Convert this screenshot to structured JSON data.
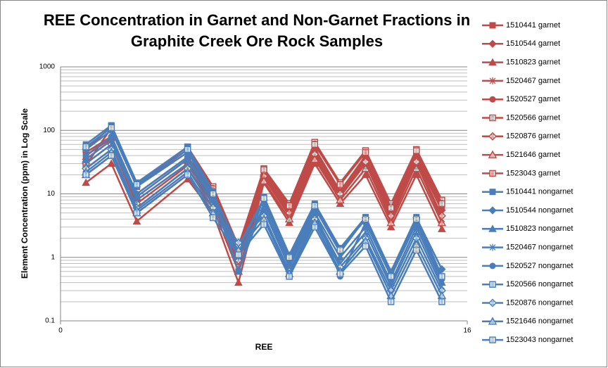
{
  "chart_data": {
    "type": "line",
    "title": "REE Concentration in Garnet and Non-Garnet Fractions in Graphite Creek Ore Rock Samples",
    "x_label": "REE",
    "y_label": "Element Concentration (ppm) in Log Scale",
    "x": [
      1,
      2,
      3,
      5,
      6,
      7,
      8,
      9,
      10,
      11,
      12,
      13,
      14,
      15
    ],
    "xlim": [
      0,
      16
    ],
    "xticks": [
      0,
      16
    ],
    "ylim": [
      0.1,
      1000
    ],
    "yticks": [
      1000,
      100,
      10,
      1,
      0.1
    ],
    "yminorticks": [
      0.2,
      0.3,
      0.4,
      0.5,
      0.6,
      0.7,
      0.8,
      0.9,
      2,
      3,
      4,
      5,
      6,
      7,
      8,
      9,
      20,
      30,
      40,
      50,
      60,
      70,
      80,
      90,
      200,
      300,
      400,
      500,
      600,
      700,
      800,
      900
    ],
    "log_y": true,
    "grid": true,
    "legend": "right",
    "series": [
      {
        "name": "1510441 garnet",
        "color": "#be4b48",
        "marker": "square",
        "values": [
          40,
          75,
          9,
          35,
          10,
          1.2,
          22,
          6,
          50,
          11,
          38,
          5,
          38,
          6
        ]
      },
      {
        "name": "1510544 garnet",
        "color": "#be4b48",
        "marker": "diamond",
        "values": [
          35,
          70,
          8,
          30,
          9,
          1.0,
          20,
          5.5,
          45,
          10,
          35,
          4.8,
          35,
          5.5
        ]
      },
      {
        "name": "1510823 garnet",
        "color": "#be4b48",
        "marker": "triangle",
        "values": [
          15,
          30,
          3.7,
          17,
          5,
          0.4,
          15,
          3.5,
          30,
          7,
          20,
          3,
          20,
          2.8
        ]
      },
      {
        "name": "1520467 garnet",
        "color": "#be4b48",
        "marker": "star",
        "values": [
          25,
          50,
          6,
          25,
          7,
          0.8,
          18,
          4.5,
          38,
          9,
          30,
          4,
          30,
          4
        ]
      },
      {
        "name": "1520527 garnet",
        "color": "#be4b48",
        "marker": "circle",
        "values": [
          45,
          80,
          10,
          38,
          11,
          1.3,
          21,
          6,
          52,
          11,
          40,
          5.5,
          42,
          6.5
        ]
      },
      {
        "name": "1520566 garnet",
        "color": "#be4b48",
        "marker": "square-hatch",
        "values": [
          50,
          115,
          14,
          55,
          13,
          1.5,
          25,
          7,
          65,
          15,
          48,
          7,
          50,
          8
        ]
      },
      {
        "name": "1520876 garnet",
        "color": "#be4b48",
        "marker": "diamond-hatch",
        "values": [
          30,
          60,
          7,
          28,
          8,
          0.9,
          19,
          5,
          42,
          10,
          32,
          4.5,
          32,
          4.5
        ]
      },
      {
        "name": "1521646 garnet",
        "color": "#be4b48",
        "marker": "triangle-hatch",
        "values": [
          20,
          40,
          5,
          20,
          6,
          0.6,
          16,
          4,
          35,
          8,
          25,
          3.5,
          25,
          3.5
        ]
      },
      {
        "name": "1523043 garnet",
        "color": "#be4b48",
        "marker": "square-hatch",
        "values": [
          28,
          110,
          13,
          50,
          12,
          1.4,
          24,
          6.5,
          60,
          14,
          45,
          6,
          48,
          7
        ]
      },
      {
        "name": "1510441 nongarnet",
        "color": "#4a7ebb",
        "marker": "square",
        "values": [
          60,
          120,
          15,
          55,
          11,
          0.6,
          9,
          1.1,
          7,
          1.4,
          4.3,
          0.6,
          4.3,
          0.5
        ]
      },
      {
        "name": "1510544 nongarnet",
        "color": "#4a7ebb",
        "marker": "diamond",
        "values": [
          50,
          100,
          13,
          45,
          10,
          1.4,
          8,
          1.0,
          6,
          1.2,
          4.2,
          0.55,
          4.2,
          0.65
        ]
      },
      {
        "name": "1510823 nongarnet",
        "color": "#4a7ebb",
        "marker": "triangle",
        "values": [
          35,
          70,
          9,
          35,
          8,
          1.2,
          6,
          0.8,
          5,
          1.0,
          3,
          0.4,
          3,
          0.4
        ]
      },
      {
        "name": "1520467 nongarnet",
        "color": "#4a7ebb",
        "marker": "star",
        "values": [
          30,
          60,
          8,
          30,
          7,
          1.0,
          5.5,
          0.7,
          4.5,
          0.8,
          2.5,
          0.35,
          2.5,
          0.35
        ]
      },
      {
        "name": "1520527 nongarnet",
        "color": "#4a7ebb",
        "marker": "circle",
        "values": [
          40,
          80,
          10,
          38,
          9,
          0.6,
          7,
          0.9,
          5.5,
          0.5,
          3.5,
          0.5,
          3.5,
          0.45
        ]
      },
      {
        "name": "1520566 nongarnet",
        "color": "#4a7ebb",
        "marker": "square-hatch",
        "values": [
          55,
          110,
          14,
          50,
          10,
          1.5,
          8.5,
          1.0,
          6.5,
          1.3,
          4,
          0.5,
          4,
          0.5
        ]
      },
      {
        "name": "1520876 nongarnet",
        "color": "#4a7ebb",
        "marker": "diamond-hatch",
        "values": [
          25,
          50,
          6,
          25,
          6,
          1.7,
          4.5,
          0.6,
          4,
          0.7,
          2,
          0.3,
          2,
          0.3
        ]
      },
      {
        "name": "1521646 nongarnet",
        "color": "#4a7ebb",
        "marker": "triangle-hatch",
        "values": [
          22,
          45,
          5.5,
          22,
          5,
          1.3,
          4,
          0.55,
          3.5,
          0.6,
          1.8,
          0.25,
          1.6,
          0.25
        ]
      },
      {
        "name": "1523043 nongarnet",
        "color": "#4a7ebb",
        "marker": "square-hatch",
        "values": [
          20,
          40,
          5,
          20,
          4.2,
          1.1,
          3.3,
          0.5,
          3,
          0.55,
          1.5,
          0.2,
          1.3,
          0.2
        ]
      }
    ]
  }
}
